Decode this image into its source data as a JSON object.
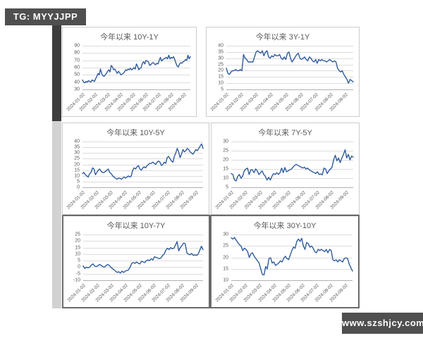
{
  "badges": {
    "tg": "TG: MYYJJPP",
    "site": "www.szshjcy.com"
  },
  "style": {
    "line_color": "#2f5b9d",
    "grid_color": "#dcdcdc",
    "axis_color": "#b0b0b0",
    "title_color": "#595959",
    "badge_bg": "#4f4f4f",
    "scroll_thumb": "#3d3d3d",
    "scroll_track": "#d2d2d2"
  },
  "x_labels": [
    "2024-01-02",
    "2024-02-02",
    "2024-03-02",
    "2024-04-02",
    "2024-05-02",
    "2024-06-02",
    "2024-07-02",
    "2024-08-02",
    "2024-09-02"
  ],
  "chart_data": [
    {
      "type": "line",
      "title": "今年以来 10Y-1Y",
      "ylim": [
        30,
        90
      ],
      "y_ticks": [
        90,
        80,
        70,
        60,
        50,
        40,
        30
      ],
      "grid": true,
      "legend": "none",
      "values": [
        43,
        40,
        39,
        41,
        40,
        42,
        41,
        40,
        43,
        42,
        41,
        45,
        48,
        52,
        50,
        58,
        52,
        49,
        48,
        50,
        52,
        55,
        57,
        54,
        63,
        61,
        57,
        58,
        55,
        52,
        55,
        53,
        50,
        51,
        52,
        54,
        57,
        56,
        58,
        57,
        59,
        57,
        58,
        60,
        58,
        65,
        62,
        57,
        59,
        60,
        66,
        68,
        65,
        70,
        69,
        68,
        63,
        64,
        66,
        67,
        65,
        64,
        66,
        65,
        70,
        74,
        69,
        71,
        72,
        73,
        74,
        72,
        77,
        72,
        74,
        73,
        75,
        71,
        66,
        62,
        61,
        65,
        67,
        66,
        68,
        69,
        71,
        70,
        77,
        72,
        75
      ]
    },
    {
      "type": "line",
      "title": "今年以来 3Y-1Y",
      "ylim": [
        5,
        40
      ],
      "y_ticks": [
        40,
        35,
        30,
        25,
        20,
        15,
        10,
        5
      ],
      "grid": true,
      "legend": "none",
      "values": [
        22,
        18,
        17,
        19,
        20,
        20,
        21,
        20,
        20,
        21,
        20,
        33,
        30,
        29,
        27,
        27,
        27,
        27,
        31,
        35,
        36,
        35,
        34,
        36,
        32,
        35,
        36,
        31,
        30,
        32,
        31,
        33,
        32,
        32,
        33,
        30,
        29,
        31,
        29,
        34,
        35,
        30,
        27,
        29,
        31,
        33,
        34,
        30,
        29,
        30,
        31,
        29,
        28,
        31,
        30,
        28,
        27,
        29,
        26,
        29,
        28,
        29,
        28,
        28,
        27,
        28,
        29,
        28,
        27,
        28,
        27,
        22,
        20,
        19,
        20,
        17,
        15,
        13,
        10,
        13,
        12,
        11
      ]
    },
    {
      "type": "line",
      "title": "今年以来 10Y-5Y",
      "ylim": [
        0,
        40
      ],
      "y_ticks": [
        40,
        35,
        30,
        25,
        20,
        15,
        10,
        5,
        0
      ],
      "grid": true,
      "legend": "none",
      "values": [
        12,
        13,
        11,
        10,
        9,
        12,
        13,
        17,
        16,
        11,
        13,
        15,
        16,
        14,
        13,
        13,
        14,
        15,
        16,
        13,
        12,
        10,
        9,
        8,
        7,
        8,
        8,
        7,
        8,
        9,
        8,
        9,
        10,
        9,
        10,
        15,
        17,
        16,
        18,
        19,
        16,
        15,
        17,
        18,
        17,
        19,
        20,
        21,
        21,
        22,
        21,
        20,
        22,
        23,
        22,
        19,
        20,
        22,
        21,
        26,
        27,
        25,
        23,
        22,
        27,
        30,
        34,
        31,
        26,
        29,
        33,
        31,
        32,
        34,
        33,
        31,
        30,
        29,
        31,
        33,
        32,
        34,
        36,
        38,
        34
      ]
    },
    {
      "type": "line",
      "title": "今年以来 7Y-5Y",
      "ylim": [
        5,
        30
      ],
      "y_ticks": [
        30,
        25,
        20,
        15,
        10,
        5
      ],
      "grid": true,
      "legend": "none",
      "values": [
        12.5,
        12,
        9,
        8.5,
        11,
        12,
        10,
        11,
        14,
        15,
        15.5,
        12,
        14.5,
        14.5,
        13,
        15,
        14,
        12,
        13,
        14,
        12,
        11,
        9,
        10.5,
        9,
        11,
        12.5,
        12,
        13,
        12,
        13,
        15.5,
        13,
        15.8,
        13.5,
        14,
        14.5,
        15,
        16,
        17,
        17.5,
        17,
        16.5,
        16,
        15.5,
        16,
        15,
        15.5,
        14.5,
        14,
        13.5,
        13,
        12.5,
        13.5,
        12,
        12.3,
        11.8,
        15.5,
        15,
        12.5,
        14,
        15,
        16,
        20,
        22.5,
        19.5,
        21,
        18.5,
        21,
        23,
        25.5,
        21,
        23,
        20,
        22,
        21.5
      ]
    },
    {
      "type": "line",
      "title": "今年以来 10Y-7Y",
      "ylim": [
        -10,
        25
      ],
      "y_ticks": [
        25,
        20,
        15,
        10,
        5,
        0,
        -5,
        -10
      ],
      "grid": true,
      "legend": "none",
      "values": [
        1,
        -1,
        0,
        -0.5,
        0,
        1.5,
        2.5,
        1,
        0.5,
        1,
        2,
        1.5,
        0.5,
        0,
        1,
        2,
        1.5,
        0,
        -1,
        -2,
        -3,
        -4,
        -3.5,
        -4.5,
        -3,
        -4,
        -3,
        -2.5,
        -2,
        0,
        3,
        3.5,
        3,
        4,
        3,
        2.5,
        4.5,
        4,
        3.5,
        5,
        5.5,
        5,
        6.5,
        5.5,
        8,
        7.5,
        7,
        6.5,
        7,
        9,
        10,
        13,
        14.5,
        13.5,
        15,
        14,
        14.5,
        17,
        19.5,
        12.5,
        15,
        16.5,
        18.5,
        18,
        11,
        10,
        9.5,
        10.5,
        9,
        9.5,
        9,
        10,
        13,
        16,
        13.5
      ]
    },
    {
      "type": "line",
      "title": "今年以来 30Y-10Y",
      "ylim": [
        10,
        30
      ],
      "y_ticks": [
        30,
        25,
        20,
        15,
        10
      ],
      "grid": true,
      "legend": "none",
      "values": [
        28.5,
        28,
        28.7,
        27.5,
        26.5,
        25.5,
        25,
        23,
        24,
        23.5,
        22.5,
        20,
        21.5,
        22,
        20.5,
        19.5,
        18.5,
        17.5,
        15,
        12.5,
        12.3,
        16,
        15,
        19.5,
        19.8,
        17.5,
        18,
        16.5,
        17,
        17.5,
        18.5,
        18,
        19.5,
        20.5,
        19.5,
        19,
        21,
        23,
        24.5,
        24,
        27,
        28,
        27,
        28.3,
        25,
        23.5,
        26.5,
        26,
        24.5,
        25,
        24,
        22.5,
        22,
        23.5,
        23,
        23.5,
        23,
        22.5,
        23.5,
        22,
        23.5,
        23,
        19,
        18.5,
        19,
        18,
        19,
        18.5,
        18,
        19.5,
        19.8,
        19.5,
        17,
        15.5,
        14
      ]
    }
  ]
}
